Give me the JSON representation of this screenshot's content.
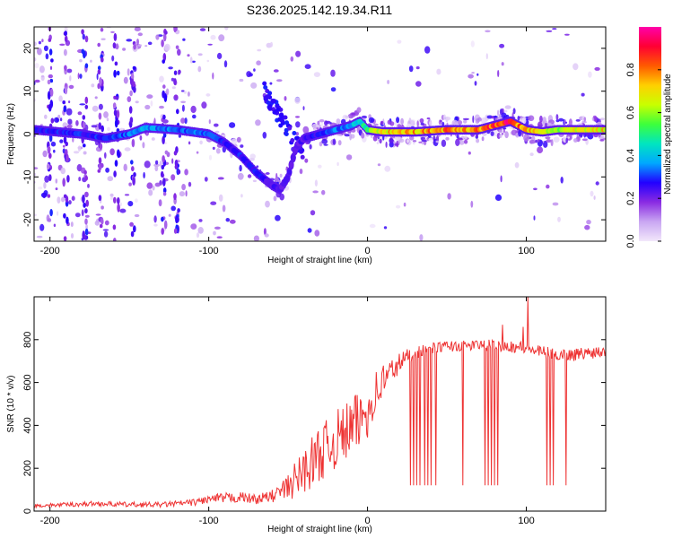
{
  "title": "S236.2025.142.19.34.R11",
  "colors": {
    "snr_line": "#ee3333",
    "colormap": [
      "#f2e8fb",
      "#c9a6f2",
      "#8a2be2",
      "#2200ff",
      "#00a8ff",
      "#00e5c0",
      "#3cff3c",
      "#c8ff00",
      "#ffd000",
      "#ff5a00",
      "#ff0033",
      "#ff00aa"
    ]
  },
  "chart_data": [
    {
      "type": "heatmap",
      "xlabel": "Height of straight line (km)",
      "ylabel": "Frequency (Hz)",
      "xlim": [
        -210,
        150
      ],
      "ylim": [
        -25,
        25
      ],
      "xticks": [
        -200,
        -100,
        0,
        100
      ],
      "yticks": [
        -20,
        -10,
        0,
        10,
        20
      ],
      "colorbar": {
        "label": "Normalized spectral amplitude",
        "range": [
          0,
          1
        ],
        "ticks": [
          "0.0",
          "0.2",
          "0.4",
          "0.6",
          "0.8"
        ]
      },
      "ridge": {
        "x": [
          -210,
          -195,
          -180,
          -165,
          -150,
          -140,
          -120,
          -100,
          -90,
          -80,
          -70,
          -60,
          -55,
          -50,
          -45,
          -40,
          -30,
          -20,
          -10,
          -5,
          0,
          10,
          30,
          50,
          70,
          80,
          90,
          100,
          110,
          120,
          130,
          150
        ],
        "freq": [
          1,
          0.5,
          0,
          -1,
          0,
          1.5,
          1,
          0,
          -2,
          -5,
          -9,
          -12,
          -13,
          -10,
          -3,
          -1,
          0,
          1,
          2,
          3,
          1,
          0.5,
          0.5,
          1,
          1,
          2,
          3,
          1,
          0.5,
          1,
          1,
          1
        ],
        "amplitude": [
          0.3,
          0.3,
          0.3,
          0.3,
          0.35,
          0.4,
          0.35,
          0.35,
          0.3,
          0.3,
          0.3,
          0.25,
          0.25,
          0.25,
          0.25,
          0.25,
          0.3,
          0.35,
          0.4,
          0.45,
          0.55,
          0.75,
          0.8,
          0.85,
          0.85,
          0.9,
          0.95,
          0.8,
          0.7,
          0.65,
          0.7,
          0.75
        ]
      }
    },
    {
      "type": "line",
      "xlabel": "Height of straight line (km)",
      "ylabel": "SNR (10 * v/v)",
      "xlim": [
        -210,
        150
      ],
      "ylim": [
        0,
        1000
      ],
      "xticks": [
        -200,
        -100,
        0,
        100
      ],
      "yticks": [
        0,
        200,
        400,
        600,
        800
      ],
      "series": [
        {
          "x": [
            -210,
            -190,
            -170,
            -150,
            -130,
            -110,
            -100,
            -90,
            -80,
            -70,
            -60,
            -50,
            -45,
            -40,
            -35,
            -30,
            -25,
            -20,
            -15,
            -10,
            -5,
            0,
            5,
            10,
            15,
            20,
            25,
            30,
            40,
            50,
            60,
            70,
            80,
            90,
            100,
            110,
            120,
            130,
            140,
            150
          ],
          "y": [
            25,
            30,
            35,
            30,
            30,
            40,
            55,
            60,
            65,
            55,
            70,
            110,
            150,
            190,
            230,
            270,
            300,
            330,
            360,
            390,
            420,
            470,
            550,
            610,
            650,
            690,
            720,
            740,
            760,
            770,
            770,
            775,
            775,
            770,
            760,
            740,
            730,
            730,
            740,
            750
          ],
          "noise": [
            8,
            10,
            12,
            12,
            12,
            15,
            20,
            25,
            25,
            22,
            30,
            60,
            90,
            110,
            120,
            130,
            130,
            140,
            140,
            140,
            140,
            130,
            110,
            90,
            70,
            50,
            40,
            30,
            25,
            25,
            25,
            25,
            25,
            30,
            30,
            30,
            30,
            30,
            30,
            30
          ],
          "dropouts": [
            27,
            29,
            31,
            33,
            36,
            38,
            40,
            43,
            60,
            74,
            76,
            78,
            80,
            82,
            113,
            115,
            117,
            125
          ],
          "dropout_floor": 120,
          "peaks": [
            {
              "x": 101,
              "y": 1000
            },
            {
              "x": 85,
              "y": 870
            },
            {
              "x": 98,
              "y": 860
            }
          ]
        }
      ]
    }
  ]
}
